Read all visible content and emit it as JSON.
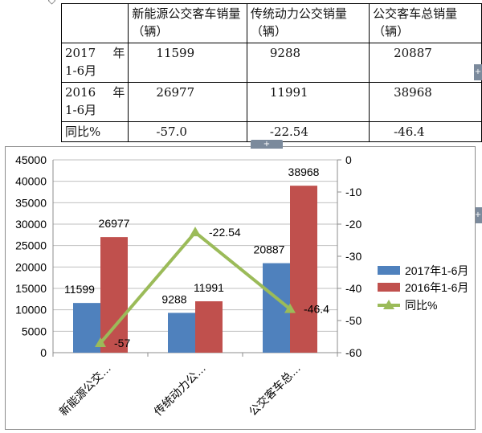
{
  "table": {
    "headers": [
      "",
      "新能源公交客车销量（辆）",
      "传统动力公交销量（辆）",
      "公交客车总销量（辆）"
    ],
    "rows": [
      {
        "period_a": "2017",
        "period_b": "年",
        "period_c": "1-6月",
        "values": [
          "11599",
          "9288",
          "20887"
        ]
      },
      {
        "period_a": "2016",
        "period_b": "年",
        "period_c": "1-6月",
        "values": [
          "26977",
          "11991",
          "38968"
        ]
      },
      {
        "label": "同比%",
        "values": [
          "-57.0",
          "-22.54",
          "-46.4"
        ]
      }
    ]
  },
  "ui": {
    "tab_plus": "+",
    "side_plus": "+",
    "corner_handle": "◇"
  },
  "colors": {
    "series_2017": "#4f81bd",
    "series_2016": "#c0504d",
    "series_yoy": "#9bbb59",
    "grid": "#bfbfbf"
  },
  "chart_data": {
    "type": "bar",
    "categories": [
      "新能源公交…",
      "传统动力公…",
      "公交客车总…"
    ],
    "series": [
      {
        "name": "2017年1-6月",
        "values": [
          11599,
          9288,
          20887
        ],
        "labels": [
          "11599",
          "9288",
          "20887"
        ]
      },
      {
        "name": "2016年1-6月",
        "values": [
          26977,
          11991,
          38968
        ],
        "labels": [
          "26977",
          "11991",
          "38968"
        ]
      },
      {
        "name": "同比%",
        "type": "line",
        "axis": "secondary",
        "values": [
          -57,
          -22.54,
          -46.4
        ],
        "labels": [
          "-57",
          "-22.54",
          "-46.4"
        ]
      }
    ],
    "ylim": [
      0,
      45000
    ],
    "y_ticks": [
      "0",
      "5000",
      "10000",
      "15000",
      "20000",
      "25000",
      "30000",
      "35000",
      "40000",
      "45000"
    ],
    "y2lim": [
      -60,
      0
    ],
    "y2_ticks": [
      "-60",
      "-50",
      "-40",
      "-30",
      "-20",
      "-10",
      "0"
    ],
    "grid": true,
    "legend_position": "right"
  }
}
